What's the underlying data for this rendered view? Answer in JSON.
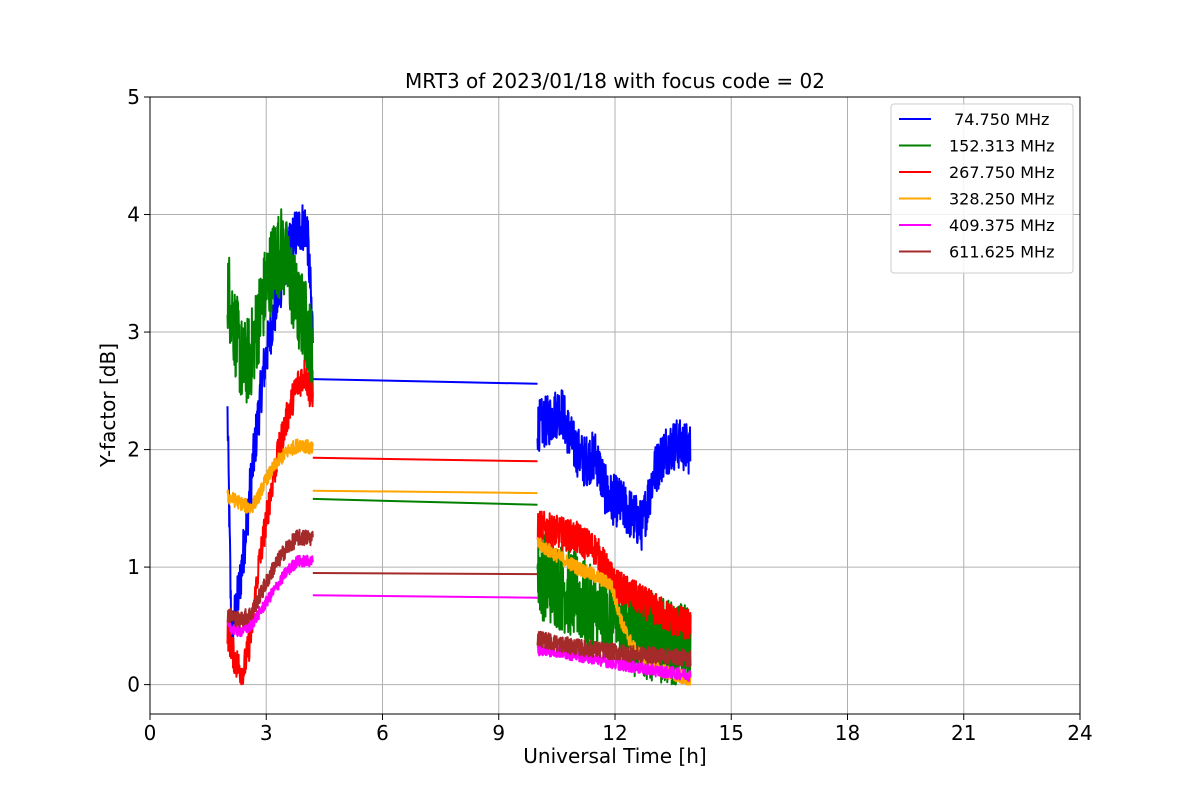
{
  "chart_data": {
    "type": "line",
    "title": "MRT3 of 2023/01/18 with focus code = 02",
    "xlabel": "Universal Time [h]",
    "ylabel": "Y-factor [dB]",
    "xlim": [
      0,
      24
    ],
    "ylim": [
      -0.25,
      5
    ],
    "xticks": [
      0,
      3,
      6,
      9,
      12,
      15,
      18,
      21,
      24
    ],
    "yticks": [
      0,
      1,
      2,
      3,
      4,
      5
    ],
    "grid": true,
    "legend_position": "top-right",
    "series": [
      {
        "name": " 74.750 MHz",
        "color": "#0000ff",
        "noise": 0.22,
        "segments": [
          [
            [
              2.0,
              2.3
            ],
            [
              2.1,
              0.4
            ],
            [
              2.3,
              0.8
            ],
            [
              2.5,
              1.4
            ],
            [
              2.7,
              2.0
            ],
            [
              2.9,
              2.6
            ],
            [
              3.1,
              3.0
            ],
            [
              3.3,
              3.3
            ],
            [
              3.5,
              3.6
            ],
            [
              3.7,
              3.8
            ],
            [
              3.9,
              3.9
            ],
            [
              4.05,
              3.9
            ],
            [
              4.2,
              3.0
            ]
          ],
          [
            [
              4.2,
              2.6
            ],
            [
              10.0,
              2.56
            ]
          ],
          [
            [
              10.0,
              2.2
            ],
            [
              10.3,
              2.25
            ],
            [
              10.6,
              2.35
            ],
            [
              10.9,
              2.05
            ],
            [
              11.2,
              1.9
            ],
            [
              11.5,
              1.95
            ],
            [
              11.8,
              1.6
            ],
            [
              12.1,
              1.55
            ],
            [
              12.4,
              1.45
            ],
            [
              12.7,
              1.35
            ],
            [
              13.0,
              1.8
            ],
            [
              13.3,
              2.0
            ],
            [
              13.6,
              2.05
            ],
            [
              13.95,
              2.0
            ]
          ]
        ]
      },
      {
        "name": "152.313 MHz",
        "color": "#008000",
        "noise": 0.38,
        "segments": [
          [
            [
              2.0,
              3.4
            ],
            [
              2.2,
              3.0
            ],
            [
              2.4,
              2.7
            ],
            [
              2.6,
              2.8
            ],
            [
              2.8,
              3.1
            ],
            [
              3.0,
              3.4
            ],
            [
              3.2,
              3.6
            ],
            [
              3.4,
              3.7
            ],
            [
              3.6,
              3.5
            ],
            [
              3.8,
              3.2
            ],
            [
              4.0,
              3.1
            ],
            [
              4.2,
              2.8
            ]
          ],
          [
            [
              4.2,
              1.58
            ],
            [
              10.0,
              1.53
            ]
          ],
          [
            [
              10.0,
              0.95
            ],
            [
              10.5,
              0.85
            ],
            [
              11.0,
              0.75
            ],
            [
              11.5,
              0.6
            ],
            [
              12.0,
              0.55
            ],
            [
              12.5,
              0.45
            ],
            [
              13.0,
              0.4
            ],
            [
              13.5,
              0.35
            ],
            [
              13.95,
              0.3
            ]
          ]
        ]
      },
      {
        "name": "267.750 MHz",
        "color": "#ff0000",
        "noise": 0.14,
        "segments": [
          [
            [
              2.0,
              0.45
            ],
            [
              2.2,
              0.2
            ],
            [
              2.4,
              0.1
            ],
            [
              2.6,
              0.4
            ],
            [
              2.8,
              1.0
            ],
            [
              3.0,
              1.4
            ],
            [
              3.2,
              1.8
            ],
            [
              3.4,
              2.1
            ],
            [
              3.6,
              2.35
            ],
            [
              3.8,
              2.55
            ],
            [
              4.0,
              2.65
            ],
            [
              4.2,
              2.4
            ]
          ],
          [
            [
              4.2,
              1.93
            ],
            [
              10.0,
              1.9
            ]
          ],
          [
            [
              10.0,
              1.35
            ],
            [
              10.5,
              1.3
            ],
            [
              11.0,
              1.25
            ],
            [
              11.5,
              1.15
            ],
            [
              12.0,
              0.85
            ],
            [
              12.5,
              0.75
            ],
            [
              13.0,
              0.65
            ],
            [
              13.5,
              0.55
            ],
            [
              13.95,
              0.5
            ]
          ]
        ]
      },
      {
        "name": "328.250 MHz",
        "color": "#ffa500",
        "noise": 0.06,
        "segments": [
          [
            [
              2.0,
              1.6
            ],
            [
              2.3,
              1.55
            ],
            [
              2.6,
              1.5
            ],
            [
              2.8,
              1.6
            ],
            [
              3.0,
              1.75
            ],
            [
              3.3,
              1.9
            ],
            [
              3.6,
              2.0
            ],
            [
              3.9,
              2.05
            ],
            [
              4.2,
              2.0
            ]
          ],
          [
            [
              4.2,
              1.65
            ],
            [
              10.0,
              1.63
            ]
          ],
          [
            [
              10.0,
              1.2
            ],
            [
              10.5,
              1.1
            ],
            [
              11.0,
              1.0
            ],
            [
              11.5,
              0.92
            ],
            [
              11.9,
              0.85
            ],
            [
              12.2,
              0.5
            ],
            [
              12.5,
              0.3
            ],
            [
              13.0,
              0.15
            ],
            [
              13.5,
              0.08
            ],
            [
              13.95,
              0.05
            ]
          ]
        ]
      },
      {
        "name": "409.375 MHz",
        "color": "#ff00ff",
        "noise": 0.05,
        "segments": [
          [
            [
              2.0,
              0.5
            ],
            [
              2.3,
              0.45
            ],
            [
              2.6,
              0.5
            ],
            [
              2.9,
              0.65
            ],
            [
              3.2,
              0.8
            ],
            [
              3.5,
              0.95
            ],
            [
              3.8,
              1.05
            ],
            [
              4.2,
              1.05
            ]
          ],
          [
            [
              4.2,
              0.76
            ],
            [
              10.0,
              0.74
            ]
          ],
          [
            [
              10.0,
              0.3
            ],
            [
              10.5,
              0.28
            ],
            [
              11.0,
              0.25
            ],
            [
              11.5,
              0.22
            ],
            [
              12.0,
              0.18
            ],
            [
              12.5,
              0.15
            ],
            [
              13.0,
              0.12
            ],
            [
              13.5,
              0.1
            ],
            [
              13.95,
              0.08
            ]
          ]
        ]
      },
      {
        "name": "611.625 MHz",
        "color": "#a52a2a",
        "noise": 0.07,
        "segments": [
          [
            [
              2.0,
              0.6
            ],
            [
              2.3,
              0.55
            ],
            [
              2.6,
              0.6
            ],
            [
              2.9,
              0.8
            ],
            [
              3.2,
              1.0
            ],
            [
              3.5,
              1.15
            ],
            [
              3.8,
              1.25
            ],
            [
              4.2,
              1.25
            ]
          ],
          [
            [
              4.2,
              0.95
            ],
            [
              10.0,
              0.94
            ]
          ],
          [
            [
              10.0,
              0.4
            ],
            [
              10.5,
              0.35
            ],
            [
              11.0,
              0.32
            ],
            [
              11.5,
              0.3
            ],
            [
              12.0,
              0.28
            ],
            [
              12.5,
              0.26
            ],
            [
              13.0,
              0.25
            ],
            [
              13.5,
              0.24
            ],
            [
              13.95,
              0.22
            ]
          ]
        ]
      }
    ]
  }
}
